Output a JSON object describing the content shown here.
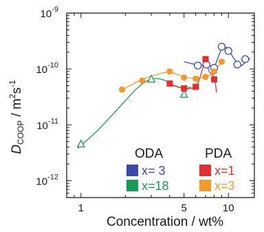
{
  "chart_data": {
    "type": "scatter",
    "xscale": "log",
    "yscale": "log",
    "xlim": [
      0.8,
      15
    ],
    "ylim": [
      5e-13,
      1e-09
    ],
    "xticks": [
      {
        "value": 1,
        "label": "1"
      },
      {
        "value": 5,
        "label": "5"
      },
      {
        "value": 10,
        "label": "10"
      }
    ],
    "yticks": [
      {
        "value": 1e-12,
        "base": "10",
        "exp": "-12"
      },
      {
        "value": 1e-11,
        "base": "10",
        "exp": "-11"
      },
      {
        "value": 1e-10,
        "base": "10",
        "exp": "-10"
      },
      {
        "value": 1e-09,
        "base": "10",
        "exp": "-9"
      }
    ],
    "xlabel": "Concentration / wt%",
    "ylabel": {
      "main": "D",
      "sub": "COOP",
      "unit": " / m",
      "sup1": "2",
      "unit2": "s",
      "sup2": "-1"
    },
    "legend": {
      "groups": [
        {
          "heading": "ODA",
          "entries": [
            {
              "label": "x= 3",
              "color": "#3b4aa8",
              "text_color": "#3b4aa8"
            },
            {
              "label": "x=18",
              "color": "#1a9a55",
              "text_color": "#1a9a55"
            }
          ]
        },
        {
          "heading": "PDA",
          "entries": [
            {
              "label": "x=1",
              "color": "#e03030",
              "text_color": "#e03030"
            },
            {
              "label": "x=3",
              "color": "#f59a30",
              "text_color": "#f59a30"
            }
          ]
        }
      ]
    },
    "series": [
      {
        "group": "ODA",
        "name": "x= 3",
        "color": "#3b4aa8",
        "marker": "circle-open",
        "points": [
          [
            6.2,
            1.15e-10
          ],
          [
            7.1,
            1.2e-10
          ],
          [
            8.0,
            1.05e-10
          ],
          [
            9.0,
            2.5e-10
          ],
          [
            10.0,
            2.1e-10
          ],
          [
            11.5,
            1.2e-10
          ],
          [
            13.0,
            1.5e-10
          ]
        ],
        "curve": [
          [
            5.0,
            1.35e-10
          ],
          [
            6.0,
            1.2e-10
          ],
          [
            7.0,
            1.15e-10
          ],
          [
            8.0,
            1.15e-10
          ],
          [
            8.5,
            1.6e-10
          ],
          [
            9.0,
            2.3e-10
          ],
          [
            9.5,
            2.5e-10
          ],
          [
            10.2,
            2e-10
          ],
          [
            11.0,
            1.5e-10
          ],
          [
            12.0,
            1.15e-10
          ],
          [
            13.0,
            1.3e-10
          ],
          [
            14.0,
            1.55e-10
          ]
        ]
      },
      {
        "group": "ODA",
        "name": "x=18",
        "color": "#1a9a55",
        "marker": "triangle-open",
        "points": [
          [
            1.0,
            4.5e-12
          ],
          [
            3.0,
            6.5e-11
          ],
          [
            5.0,
            3.5e-11
          ]
        ],
        "curve": [
          [
            0.95,
            3.8e-12
          ],
          [
            1.3,
            8e-12
          ],
          [
            1.8,
            2e-11
          ],
          [
            2.4,
            4.5e-11
          ],
          [
            3.0,
            6.6e-11
          ],
          [
            3.6,
            6.4e-11
          ],
          [
            4.2,
            5.2e-11
          ],
          [
            5.0,
            4.5e-11
          ],
          [
            5.6,
            4.8e-11
          ]
        ]
      },
      {
        "group": "PDA",
        "name": "x=1",
        "color": "#e03030",
        "marker": "square",
        "points": [
          [
            4.0,
            5.5e-11
          ],
          [
            5.0,
            4.5e-11
          ],
          [
            6.0,
            4.8e-11
          ],
          [
            7.0,
            1.5e-10
          ],
          [
            8.0,
            6.5e-11
          ]
        ],
        "curve": [
          [
            4.0,
            5.3e-11
          ],
          [
            5.0,
            4.5e-11
          ],
          [
            6.0,
            4.9e-11
          ],
          [
            6.6,
            9e-11
          ],
          [
            7.0,
            1.5e-10
          ],
          [
            7.4,
            9e-11
          ],
          [
            8.0,
            7.2e-11
          ],
          [
            8.3,
            3.8e-11
          ]
        ]
      },
      {
        "group": "PDA",
        "name": "x=3",
        "color": "#f59a30",
        "marker": "circle",
        "points": [
          [
            1.9,
            4.3e-11
          ],
          [
            2.6,
            6.2e-11
          ],
          [
            4.0,
            9e-11
          ],
          [
            5.0,
            7e-11
          ],
          [
            6.0,
            6.7e-11
          ],
          [
            7.0,
            7.2e-11
          ],
          [
            8.0,
            9e-11
          ],
          [
            9.0,
            1.35e-10
          ]
        ],
        "curve": [
          [
            1.9,
            4.2e-11
          ],
          [
            2.5,
            6.2e-11
          ],
          [
            3.2,
            7.8e-11
          ],
          [
            4.0,
            8.8e-11
          ],
          [
            5.0,
            7.2e-11
          ],
          [
            6.0,
            6.8e-11
          ],
          [
            7.0,
            7.3e-11
          ],
          [
            8.0,
            8.8e-11
          ],
          [
            9.0,
            1.4e-10
          ]
        ]
      }
    ]
  }
}
